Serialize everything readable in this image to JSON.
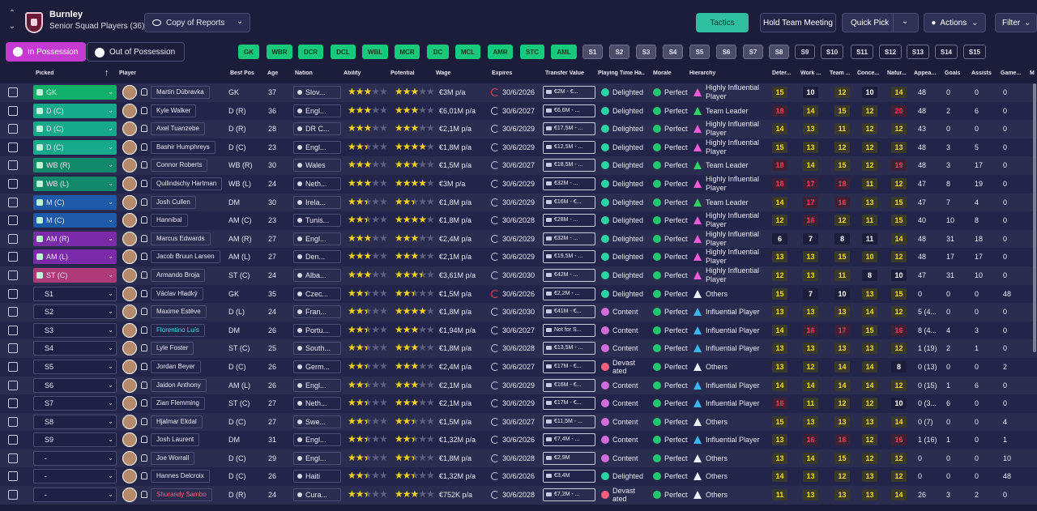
{
  "club": {
    "name": "Burnley",
    "subtitle": "Senior Squad Players (36)"
  },
  "view_label": "Copy of Reports",
  "toolbar": {
    "tactics": "Tactics",
    "hold_meeting": "Hold Team Meeting",
    "quick_pick": "Quick Pick",
    "actions": "Actions",
    "filter": "Filter"
  },
  "tabs": {
    "in_possession": "In Possession",
    "out_of_possession": "Out of Possession"
  },
  "position_buttons": [
    "GK",
    "WBR",
    "DCR",
    "DCL",
    "WBL",
    "MCR",
    "DC",
    "MCL",
    "AMR",
    "STC",
    "AML",
    "S1",
    "S2",
    "S3",
    "S4",
    "S5",
    "S6",
    "S7",
    "S8",
    "S9",
    "S10",
    "S11",
    "S12",
    "S13",
    "S14",
    "S15"
  ],
  "columns": [
    "Picked",
    "Player",
    "Best Pos",
    "Age",
    "Nation",
    "Ability",
    "Potential",
    "Wage",
    "Expires",
    "Transfer Value",
    "Playing Time Ha...",
    "Morale",
    "Hierarchy",
    "Deter...",
    "Work ...",
    "Team ...",
    "Conce...",
    "Natur...",
    "Appea...",
    "Goals",
    "Assists",
    "Game...",
    "M"
  ],
  "players": [
    {
      "picked": "GK",
      "name": "Martin Dúbravka",
      "pos": "GK",
      "age": "37",
      "nation": "Slov...",
      "ab": 3,
      "pot": 3,
      "wage": "€3M p/a",
      "expires": "30/6/2026",
      "tv": "€2M - €...",
      "pt": "Delighted",
      "morale": "Perfect",
      "hier": "Highly Influential Player",
      "det": "15",
      "work": "10",
      "team": "12",
      "conc": "10",
      "nat": "14",
      "apps": "48",
      "goals": "0",
      "assists": "0",
      "games": "0"
    },
    {
      "picked": "D (C)",
      "name": "Kyle Walker",
      "pos": "D (R)",
      "age": "36",
      "nation": "Engl...",
      "ab": 3,
      "pot": 3,
      "wage": "€6,01M p/a",
      "expires": "30/6/2027",
      "tv": "€6,6M - ...",
      "pt": "Delighted",
      "morale": "Perfect",
      "hier": "Team Leader",
      "det": "18",
      "work": "14",
      "team": "15",
      "conc": "12",
      "nat": "20",
      "apps": "48",
      "goals": "2",
      "assists": "6",
      "games": "0"
    },
    {
      "picked": "D (C)",
      "name": "Axel Tuanzebe",
      "pos": "D (R)",
      "age": "28",
      "nation": "DR C...",
      "ab": 3,
      "pot": 3,
      "wage": "€2,1M p/a",
      "expires": "30/6/2029",
      "tv": "€17,5M - ...",
      "pt": "Delighted",
      "morale": "Perfect",
      "hier": "Highly Influential Player",
      "det": "14",
      "work": "13",
      "team": "11",
      "conc": "12",
      "nat": "12",
      "apps": "43",
      "goals": "0",
      "assists": "0",
      "games": "0"
    },
    {
      "picked": "D (C)",
      "name": "Bashir Humphreys",
      "pos": "D (C)",
      "age": "23",
      "nation": "Engl...",
      "ab": 2.5,
      "pot": 4,
      "wage": "€1,8M p/a",
      "expires": "30/6/2029",
      "tv": "€12,5M - ...",
      "pt": "Delighted",
      "morale": "Perfect",
      "hier": "Highly Influential Player",
      "det": "15",
      "work": "13",
      "team": "12",
      "conc": "12",
      "nat": "13",
      "apps": "48",
      "goals": "3",
      "assists": "5",
      "games": "0"
    },
    {
      "picked": "WB (R)",
      "name": "Connor Roberts",
      "pos": "WB (R)",
      "age": "30",
      "nation": "Wales",
      "ab": 3,
      "pot": 3,
      "wage": "€1,5M p/a",
      "expires": "30/6/2027",
      "tv": "€18,5M - ...",
      "pt": "Delighted",
      "morale": "Perfect",
      "hier": "Team Leader",
      "det": "18",
      "work": "14",
      "team": "15",
      "conc": "12",
      "nat": "19",
      "apps": "48",
      "goals": "3",
      "assists": "17",
      "games": "0"
    },
    {
      "picked": "WB (L)",
      "name": "Quilindschy Hartman",
      "pos": "WB (L)",
      "age": "24",
      "nation": "Neth...",
      "ab": 3,
      "pot": 4,
      "wage": "€3M p/a",
      "expires": "30/6/2029",
      "tv": "€32M - ...",
      "pt": "Delighted",
      "morale": "Perfect",
      "hier": "Highly Influential Player",
      "det": "18",
      "work": "17",
      "team": "18",
      "conc": "11",
      "nat": "12",
      "apps": "47",
      "goals": "8",
      "assists": "19",
      "games": "0"
    },
    {
      "picked": "M (C)",
      "name": "Josh Cullen",
      "pos": "DM",
      "age": "30",
      "nation": "Irela...",
      "ab": 2.5,
      "pot": 2.5,
      "wage": "€1,8M p/a",
      "expires": "30/6/2029",
      "tv": "€16M - €...",
      "pt": "Delighted",
      "morale": "Perfect",
      "hier": "Team Leader",
      "det": "14",
      "work": "17",
      "team": "16",
      "conc": "13",
      "nat": "15",
      "apps": "47",
      "goals": "7",
      "assists": "4",
      "games": "0"
    },
    {
      "picked": "M (C)",
      "name": "Hannibal",
      "pos": "AM (C)",
      "age": "23",
      "nation": "Tunis...",
      "ab": 2.5,
      "pot": 4,
      "wage": "€1,8M p/a",
      "expires": "30/6/2028",
      "tv": "€28M - ...",
      "pt": "Delighted",
      "morale": "Perfect",
      "hier": "Highly Influential Player",
      "det": "12",
      "work": "16",
      "team": "12",
      "conc": "11",
      "nat": "15",
      "apps": "40",
      "goals": "10",
      "assists": "8",
      "games": "0"
    },
    {
      "picked": "AM (R)",
      "name": "Marcus Edwards",
      "pos": "AM (R)",
      "age": "27",
      "nation": "Engl...",
      "ab": 3,
      "pot": 3,
      "wage": "€2,4M p/a",
      "expires": "30/6/2029",
      "tv": "€32M - ...",
      "pt": "Delighted",
      "morale": "Perfect",
      "hier": "Highly Influential Player",
      "det": "6",
      "work": "7",
      "team": "8",
      "conc": "11",
      "nat": "14",
      "apps": "48",
      "goals": "31",
      "assists": "18",
      "games": "0"
    },
    {
      "picked": "AM (L)",
      "name": "Jacob Bruun Larsen",
      "pos": "AM (L)",
      "age": "27",
      "nation": "Den...",
      "ab": 3,
      "pot": 3,
      "wage": "€2,1M p/a",
      "expires": "30/6/2029",
      "tv": "€19,5M - ...",
      "pt": "Delighted",
      "morale": "Perfect",
      "hier": "Highly Influential Player",
      "det": "13",
      "work": "13",
      "team": "15",
      "conc": "10",
      "nat": "12",
      "apps": "48",
      "goals": "17",
      "assists": "17",
      "games": "0"
    },
    {
      "picked": "ST (C)",
      "name": "Armando Broja",
      "pos": "ST (C)",
      "age": "24",
      "nation": "Alba...",
      "ab": 3,
      "pot": 3.5,
      "wage": "€3,61M p/a",
      "expires": "30/6/2030",
      "tv": "€42M - ...",
      "pt": "Delighted",
      "morale": "Perfect",
      "hier": "Highly Influential Player",
      "det": "12",
      "work": "13",
      "team": "11",
      "conc": "8",
      "nat": "10",
      "apps": "47",
      "goals": "31",
      "assists": "10",
      "games": "0"
    },
    {
      "picked": "S1",
      "name": "Václav Hladký",
      "pos": "GK",
      "age": "35",
      "nation": "Czec...",
      "ab": 2.5,
      "pot": 2.5,
      "wage": "€1,5M p/a",
      "expires": "30/6/2026",
      "tv": "€2,2M - ...",
      "pt": "Delighted",
      "morale": "Perfect",
      "hier": "Others",
      "det": "15",
      "work": "7",
      "team": "10",
      "conc": "13",
      "nat": "15",
      "apps": "0",
      "goals": "0",
      "assists": "0",
      "games": "48"
    },
    {
      "picked": "S2",
      "name": "Maxime Estève",
      "pos": "D (L)",
      "age": "24",
      "nation": "Fran...",
      "ab": 2.5,
      "pot": 4,
      "wage": "€1,8M p/a",
      "expires": "30/6/2030",
      "tv": "€41M - €...",
      "pt": "Content",
      "morale": "Perfect",
      "hier": "Influential Player",
      "det": "13",
      "work": "13",
      "team": "13",
      "conc": "14",
      "nat": "12",
      "apps": "5 (4...",
      "goals": "0",
      "assists": "0",
      "games": "0"
    },
    {
      "picked": "S3",
      "name": "Florentino Luís",
      "pos": "DM",
      "age": "26",
      "nation": "Portu...",
      "ab": 2.5,
      "pot": 3,
      "wage": "€1,94M p/a",
      "expires": "30/6/2027",
      "tv": "Not for S...",
      "pt": "Content",
      "morale": "Perfect",
      "hier": "Influential Player",
      "det": "14",
      "work": "16",
      "team": "17",
      "conc": "15",
      "nat": "16",
      "apps": "8 (4...",
      "goals": "4",
      "assists": "3",
      "games": "0"
    },
    {
      "picked": "S4",
      "name": "Lyle Foster",
      "pos": "ST (C)",
      "age": "25",
      "nation": "South...",
      "ab": 2.5,
      "pot": 3,
      "wage": "€1,8M p/a",
      "expires": "30/6/2028",
      "tv": "€13,5M - ...",
      "pt": "Content",
      "morale": "Perfect",
      "hier": "Influential Player",
      "det": "13",
      "work": "13",
      "team": "13",
      "conc": "13",
      "nat": "12",
      "apps": "1 (19)",
      "goals": "2",
      "assists": "1",
      "games": "0"
    },
    {
      "picked": "S5",
      "name": "Jordan Beyer",
      "pos": "D (C)",
      "age": "26",
      "nation": "Germ...",
      "ab": 2.5,
      "pot": 3,
      "wage": "€2,4M p/a",
      "expires": "30/6/2027",
      "tv": "€17M - €...",
      "pt": "Devastated",
      "morale": "Perfect",
      "hier": "Others",
      "det": "13",
      "work": "12",
      "team": "14",
      "conc": "14",
      "nat": "8",
      "apps": "0 (13)",
      "goals": "0",
      "assists": "0",
      "games": "2"
    },
    {
      "picked": "S6",
      "name": "Jaidon Anthony",
      "pos": "AM (L)",
      "age": "26",
      "nation": "Engl...",
      "ab": 2.5,
      "pot": 3,
      "wage": "€2,1M p/a",
      "expires": "30/6/2029",
      "tv": "€16M - €...",
      "pt": "Content",
      "morale": "Perfect",
      "hier": "Influential Player",
      "det": "14",
      "work": "14",
      "team": "14",
      "conc": "14",
      "nat": "12",
      "apps": "0 (15)",
      "goals": "1",
      "assists": "6",
      "games": "0"
    },
    {
      "picked": "S7",
      "name": "Zian Flemming",
      "pos": "ST (C)",
      "age": "27",
      "nation": "Neth...",
      "ab": 2.5,
      "pot": 3,
      "wage": "€2,1M p/a",
      "expires": "30/6/2029",
      "tv": "€17M - €...",
      "pt": "Content",
      "morale": "Perfect",
      "hier": "Influential Player",
      "det": "16",
      "work": "11",
      "team": "12",
      "conc": "12",
      "nat": "10",
      "apps": "0 (3...",
      "goals": "6",
      "assists": "0",
      "games": "0"
    },
    {
      "picked": "S8",
      "name": "Hjalmar Ekdal",
      "pos": "D (C)",
      "age": "27",
      "nation": "Swe...",
      "ab": 2.5,
      "pot": 2.5,
      "wage": "€1,5M p/a",
      "expires": "30/6/2027",
      "tv": "€11,5M - ...",
      "pt": "Content",
      "morale": "Perfect",
      "hier": "Others",
      "det": "15",
      "work": "13",
      "team": "13",
      "conc": "13",
      "nat": "14",
      "apps": "0 (7)",
      "goals": "0",
      "assists": "0",
      "games": "4"
    },
    {
      "picked": "S9",
      "name": "Josh Laurent",
      "pos": "DM",
      "age": "31",
      "nation": "Engl...",
      "ab": 2.5,
      "pot": 2.5,
      "wage": "€1,32M p/a",
      "expires": "30/6/2026",
      "tv": "€7,4M - ...",
      "pt": "Content",
      "morale": "Perfect",
      "hier": "Influential Player",
      "det": "13",
      "work": "16",
      "team": "16",
      "conc": "12",
      "nat": "16",
      "apps": "1 (16)",
      "goals": "1",
      "assists": "0",
      "games": "1"
    },
    {
      "picked": "-",
      "name": "Joe Worrall",
      "pos": "D (C)",
      "age": "29",
      "nation": "Engl...",
      "ab": 2.5,
      "pot": 2.5,
      "wage": "€1,8M p/a",
      "expires": "30/6/2028",
      "tv": "€2,9M",
      "pt": "Content",
      "morale": "Perfect",
      "hier": "Others",
      "det": "13",
      "work": "14",
      "team": "15",
      "conc": "12",
      "nat": "12",
      "apps": "0",
      "goals": "0",
      "assists": "0",
      "games": "10"
    },
    {
      "picked": "-",
      "name": "Hannes Delcroix",
      "pos": "D (C)",
      "age": "26",
      "nation": "Haiti",
      "ab": 2.5,
      "pot": 2.5,
      "wage": "€1,32M p/a",
      "expires": "30/6/2026",
      "tv": "€3,4M",
      "pt": "Delighted",
      "morale": "Perfect",
      "hier": "Others",
      "det": "14",
      "work": "13",
      "team": "12",
      "conc": "13",
      "nat": "12",
      "apps": "0",
      "goals": "0",
      "assists": "0",
      "games": "48"
    },
    {
      "picked": "-",
      "name": "Shurandy Sambo",
      "pos": "D (R)",
      "age": "24",
      "nation": "Cura...",
      "ab": 2.5,
      "pot": 3,
      "wage": "€752K p/a",
      "expires": "30/6/2028",
      "tv": "€7,2M - ...",
      "pt": "Devastated",
      "morale": "Perfect",
      "hier": "Others",
      "det": "11",
      "work": "13",
      "team": "13",
      "conc": "13",
      "nat": "14",
      "apps": "26",
      "goals": "3",
      "assists": "2",
      "games": "0"
    }
  ],
  "colors": {
    "accent_in_possession": "#c53bd2",
    "tactics": "#2fbfa0",
    "position_selected": "#17c97a",
    "attr_high": "#f5dc22",
    "attr_low": "#ff3d5a"
  }
}
